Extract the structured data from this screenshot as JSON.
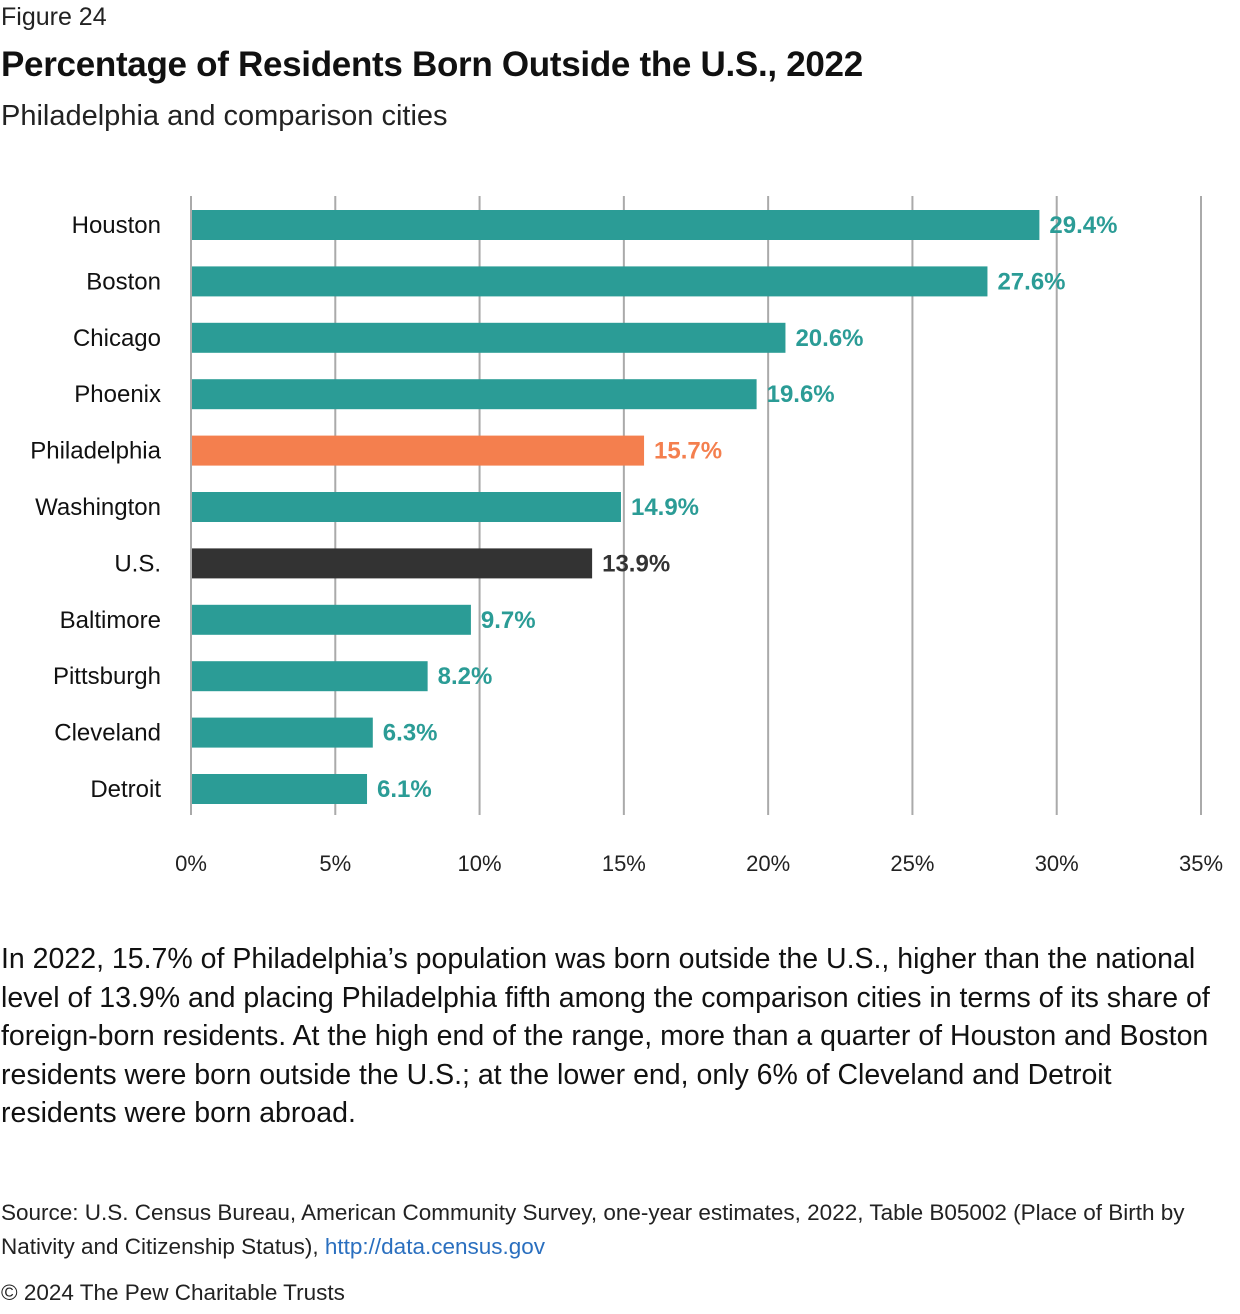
{
  "header": {
    "figure_label": "Figure 24",
    "title": "Percentage of Residents Born Outside the U.S., 2022",
    "subtitle": "Philadelphia and comparison cities"
  },
  "chart_data": {
    "type": "bar",
    "orientation": "horizontal",
    "title": "Percentage of Residents Born Outside the U.S., 2022",
    "subtitle": "Philadelphia and comparison cities",
    "xlabel": "",
    "ylabel": "",
    "categories": [
      "Houston",
      "Boston",
      "Chicago",
      "Phoenix",
      "Philadelphia",
      "Washington",
      "U.S.",
      "Baltimore",
      "Pittsburgh",
      "Cleveland",
      "Detroit"
    ],
    "values": [
      29.4,
      27.6,
      20.6,
      19.6,
      15.7,
      14.9,
      13.9,
      9.7,
      8.2,
      6.3,
      6.1
    ],
    "value_labels": [
      "29.4%",
      "27.6%",
      "20.6%",
      "19.6%",
      "15.7%",
      "14.9%",
      "13.9%",
      "9.7%",
      "8.2%",
      "6.3%",
      "6.1%"
    ],
    "bar_colors": [
      "#2b9c96",
      "#2b9c96",
      "#2b9c96",
      "#2b9c96",
      "#f47f4e",
      "#2b9c96",
      "#333333",
      "#2b9c96",
      "#2b9c96",
      "#2b9c96",
      "#2b9c96"
    ],
    "xlim": [
      0,
      35
    ],
    "xticks": [
      0,
      5,
      10,
      15,
      20,
      25,
      30,
      35
    ],
    "xtick_labels": [
      "0%",
      "5%",
      "10%",
      "15%",
      "20%",
      "25%",
      "30%",
      "35%"
    ],
    "grid": "vertical",
    "legend": "none"
  },
  "colors": {
    "default": "#2b9c96",
    "highlight": "#f47f4e",
    "national": "#333333",
    "grid": "#aaaaaa"
  },
  "body": {
    "paragraph": "In 2022, 15.7% of Philadelphia’s population was born outside the U.S., higher than the national level of 13.9% and placing Philadelphia fifth among the comparison cities in terms of its share of foreign-born residents. At the high end of the range, more than a quarter of Houston and Boston residents were born outside the U.S.; at the lower end, only 6% of Cleveland and Detroit residents were born abroad."
  },
  "footer": {
    "source_text": "Source: U.S. Census Bureau, American Community Survey, one-year estimates, 2022, Table B05002 (Place of Birth by Nativity and Citizenship Status), ",
    "source_link": "http://data.census.gov",
    "copyright": "© 2024 The Pew Charitable Trusts"
  }
}
